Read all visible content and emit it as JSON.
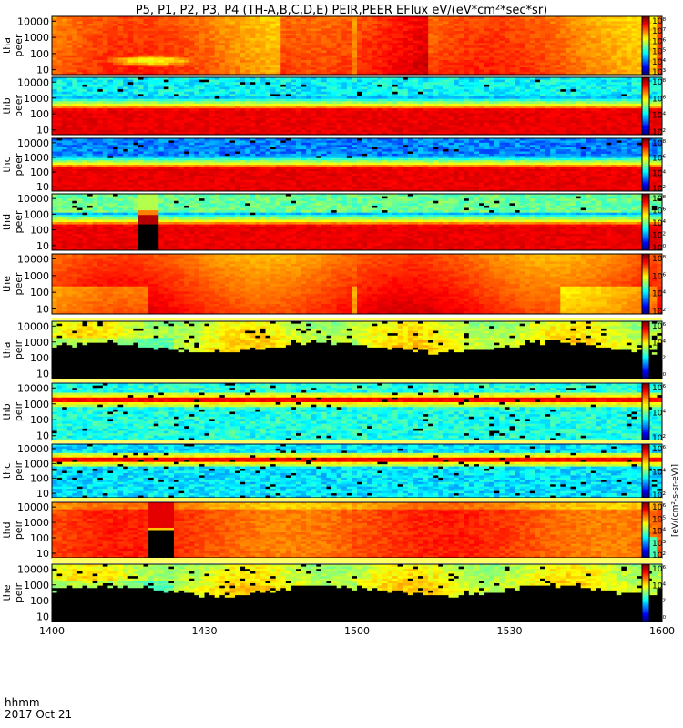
{
  "title": "P5, P1, P2, P3, P4 (TH-A,B,C,D,E) PEIR,PEER EFlux eV/(eV*cm²*sec*sr)",
  "footer": {
    "time_label": "hhmm",
    "date_label": "2017 Oct 21"
  },
  "colorbar_unit_label": "[eV/(cm²-s-sr-eV)]",
  "colors": {
    "background": "#ffffff",
    "fill_black": "#000000",
    "gap_white": "#ffffff"
  },
  "chart_data": {
    "type": "heatmap",
    "x_label": "",
    "x_range": [
      1400,
      1600
    ],
    "x_ticks": [
      1400,
      1430,
      1500,
      1530,
      1600
    ],
    "y_axis_log": true,
    "y_range": [
      5,
      20000
    ],
    "y_ticks": [
      10,
      100,
      1000,
      10000
    ],
    "panels": [
      {
        "name": "tha_peer",
        "label": [
          "tha",
          "peer"
        ],
        "cbar_ticks": [
          "10³",
          "10⁴",
          "10⁵",
          "10⁶",
          "10⁷",
          "10⁸"
        ],
        "cbar_min_exp": 3,
        "cbar_max_exp": 8,
        "pattern": "warm_full",
        "cold_blob": {
          "t": 1420,
          "logE": 1.55,
          "w": 9,
          "h": 0.35
        }
      },
      {
        "name": "thb_peer",
        "label": [
          "thb",
          "peer"
        ],
        "cbar_ticks": [
          "10²",
          "10⁴",
          "10⁶",
          "10⁸"
        ],
        "cbar_min_exp": 2,
        "cbar_max_exp": 8,
        "pattern": "low_band"
      },
      {
        "name": "thc_peer",
        "label": [
          "thc",
          "peer"
        ],
        "cbar_ticks": [
          "10²",
          "10⁴",
          "10⁶",
          "10⁸"
        ],
        "cbar_min_exp": 2,
        "cbar_max_exp": 8,
        "pattern": "low_band_blue"
      },
      {
        "name": "thd_peer",
        "label": [
          "thd",
          "peer"
        ],
        "cbar_ticks": [
          "10⁰",
          "10²",
          "10⁴",
          "10⁶",
          "10⁸"
        ],
        "cbar_min_exp": 0,
        "cbar_max_exp": 8,
        "pattern": "low_band_green",
        "black_gap": {
          "t_start": 1418,
          "t_end": 1421
        }
      },
      {
        "name": "the_peer",
        "label": [
          "the",
          "peer"
        ],
        "cbar_ticks": [
          "10²",
          "10⁴",
          "10⁶",
          "10⁸"
        ],
        "cbar_min_exp": 2,
        "cbar_max_exp": 8,
        "pattern": "warm_hole",
        "hole": {
          "t_start": 1490,
          "t_end": 1505
        }
      },
      {
        "name": "tha_peir",
        "label": [
          "tha",
          "peir"
        ],
        "cbar_ticks": [
          "10⁰",
          "10²",
          "10⁴",
          "10⁶"
        ],
        "cbar_min_exp": 0,
        "cbar_max_exp": 6,
        "pattern": "ion_black_below"
      },
      {
        "name": "thb_peir",
        "label": [
          "thb",
          "peir"
        ],
        "cbar_ticks": [
          "10²",
          "10⁴",
          "10⁶"
        ],
        "cbar_min_exp": 1,
        "cbar_max_exp": 7,
        "pattern": "ion_band"
      },
      {
        "name": "thc_peir",
        "label": [
          "thc",
          "peir"
        ],
        "cbar_ticks": [
          "10²",
          "10⁴",
          "10⁶"
        ],
        "cbar_min_exp": 1,
        "cbar_max_exp": 7,
        "pattern": "ion_band_blue"
      },
      {
        "name": "thd_peir",
        "label": [
          "thd",
          "peir"
        ],
        "cbar_ticks": [
          "10²",
          "10³",
          "10⁴",
          "10⁵",
          "10⁶"
        ],
        "cbar_min_exp": 2,
        "cbar_max_exp": 6,
        "pattern": "ion_warm",
        "black_gap": {
          "t_start": 1420,
          "t_end": 1424
        }
      },
      {
        "name": "the_peir",
        "label": [
          "the",
          "peir"
        ],
        "cbar_ticks": [
          "10⁰",
          "10²",
          "10⁴",
          "10⁶"
        ],
        "cbar_min_exp": 0,
        "cbar_max_exp": 6,
        "pattern": "ion_black_below_hole",
        "hole": {
          "t_start": 1492,
          "t_end": 1508
        }
      }
    ]
  }
}
